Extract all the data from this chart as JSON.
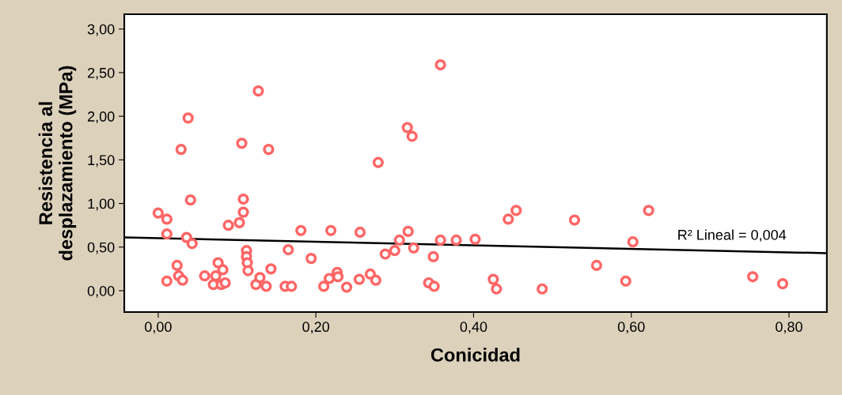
{
  "chart_data": {
    "type": "scatter",
    "xlabel": "Conicidad",
    "ylabel": "Resistencia al\ndesplazamiento (MPa)",
    "grid": false,
    "legend": false,
    "xlim": [
      -0.043,
      0.848
    ],
    "ylim": [
      -0.245,
      3.17
    ],
    "xticks": [
      {
        "value": 0,
        "label": "0,00"
      },
      {
        "value": 0.2,
        "label": "0,20"
      },
      {
        "value": 0.4,
        "label": "0,40"
      },
      {
        "value": 0.6,
        "label": "0,60"
      },
      {
        "value": 0.8,
        "label": "0,80"
      }
    ],
    "yticks": [
      {
        "value": 0,
        "label": "0,00"
      },
      {
        "value": 0.5,
        "label": "0,50"
      },
      {
        "value": 1,
        "label": "1,00"
      },
      {
        "value": 1.5,
        "label": "1,50"
      },
      {
        "value": 2,
        "label": "2,00"
      },
      {
        "value": 2.5,
        "label": "2,50"
      },
      {
        "value": 3,
        "label": "3,00"
      }
    ],
    "annotations": [
      "R² Lineal = 0,004"
    ],
    "series": [
      {
        "marker": "circle",
        "color": "#ff6666",
        "x": [
          0.0,
          0.011,
          0.011,
          0.011,
          0.024,
          0.026,
          0.031,
          0.029,
          0.038,
          0.036,
          0.041,
          0.043,
          0.059,
          0.073,
          0.07,
          0.076,
          0.08,
          0.082,
          0.085,
          0.089,
          0.103,
          0.106,
          0.108,
          0.108,
          0.112,
          0.112,
          0.113,
          0.114,
          0.124,
          0.127,
          0.129,
          0.137,
          0.14,
          0.143,
          0.161,
          0.165,
          0.169,
          0.181,
          0.194,
          0.21,
          0.217,
          0.219,
          0.227,
          0.228,
          0.239,
          0.255,
          0.256,
          0.269,
          0.276,
          0.279,
          0.288,
          0.3,
          0.306,
          0.316,
          0.317,
          0.322,
          0.324,
          0.343,
          0.349,
          0.35,
          0.358,
          0.358,
          0.378,
          0.402,
          0.425,
          0.429,
          0.444,
          0.454,
          0.487,
          0.528,
          0.556,
          0.593,
          0.602,
          0.622,
          0.754,
          0.792
        ],
        "values": [
          0.89,
          0.82,
          0.65,
          0.11,
          0.29,
          0.17,
          0.12,
          1.62,
          1.98,
          0.61,
          1.04,
          0.54,
          0.17,
          0.17,
          0.07,
          0.32,
          0.07,
          0.24,
          0.09,
          0.75,
          0.78,
          1.69,
          1.05,
          0.9,
          0.46,
          0.39,
          0.32,
          0.23,
          0.07,
          2.29,
          0.15,
          0.05,
          1.62,
          0.25,
          0.05,
          0.47,
          0.05,
          0.69,
          0.37,
          0.05,
          0.14,
          0.69,
          0.21,
          0.16,
          0.04,
          0.13,
          0.67,
          0.19,
          0.12,
          1.47,
          0.42,
          0.46,
          0.58,
          1.87,
          0.68,
          1.77,
          0.49,
          0.09,
          0.39,
          0.05,
          2.59,
          0.58,
          0.58,
          0.59,
          0.13,
          0.02,
          0.82,
          0.92,
          0.02,
          0.81,
          0.29,
          0.11,
          0.56,
          0.92,
          0.16,
          0.08
        ]
      },
      {
        "type": "line",
        "color": "#000000",
        "x": [
          -0.043,
          0.848
        ],
        "values": [
          0.61,
          0.43
        ]
      }
    ]
  }
}
